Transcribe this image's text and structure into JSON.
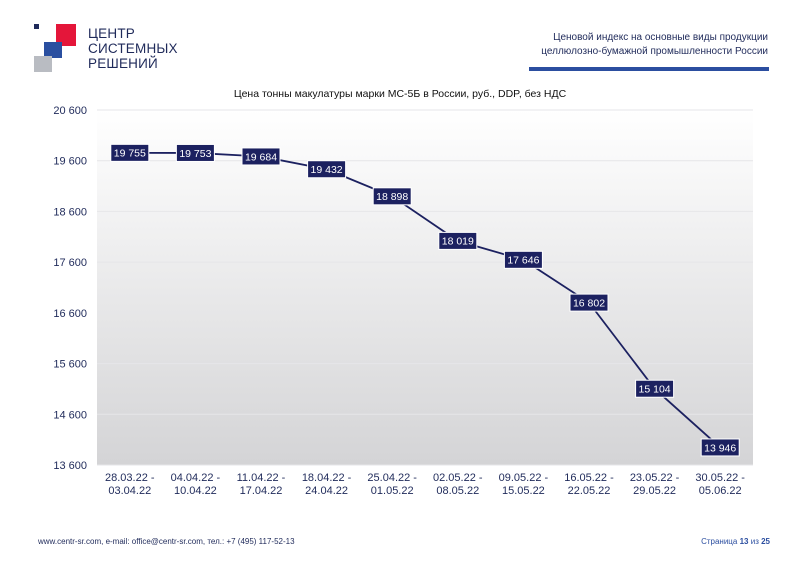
{
  "header": {
    "logo_lines": [
      "ЦЕНТР",
      "СИСТЕМНЫХ",
      "РЕШЕНИЙ"
    ],
    "title_line1": "Ценовой индекс на основные виды продукции",
    "title_line2": "целлюлозно-бумажной промышленности России"
  },
  "chart_data": {
    "type": "line",
    "title": "Цена тонны макулатуры марки МС-5Б в России, руб., DDP, без НДС",
    "categories": [
      [
        "28.03.22 -",
        "03.04.22"
      ],
      [
        "04.04.22 -",
        "10.04.22"
      ],
      [
        "11.04.22 -",
        "17.04.22"
      ],
      [
        "18.04.22 -",
        "24.04.22"
      ],
      [
        "25.04.22 -",
        "01.05.22"
      ],
      [
        "02.05.22 -",
        "08.05.22"
      ],
      [
        "09.05.22 -",
        "15.05.22"
      ],
      [
        "16.05.22 -",
        "22.05.22"
      ],
      [
        "23.05.22 -",
        "29.05.22"
      ],
      [
        "30.05.22 -",
        "05.06.22"
      ]
    ],
    "values": [
      19755,
      19753,
      19684,
      19432,
      18898,
      18019,
      17646,
      16802,
      15104,
      13946
    ],
    "value_labels": [
      "19 755",
      "19 753",
      "19 684",
      "19 432",
      "18 898",
      "18 019",
      "17 646",
      "16 802",
      "15 104",
      "13 946"
    ],
    "ylim": [
      13600,
      20600
    ],
    "yticks": [
      13600,
      14600,
      15600,
      16600,
      17600,
      18600,
      19600,
      20600
    ],
    "ytick_labels": [
      "13 600",
      "14 600",
      "15 600",
      "16 600",
      "17 600",
      "18 600",
      "19 600",
      "20 600"
    ],
    "grid": true,
    "line_color": "#1c2160",
    "label_bg": "#1c2160"
  },
  "footer": {
    "contacts": "www.centr-sr.com, e-mail: office@centr-sr.com, тел.: +7 (495) 117-52-13",
    "page_prefix": "Страница",
    "page_num": "13",
    "page_sep": "из",
    "page_total": "25"
  }
}
